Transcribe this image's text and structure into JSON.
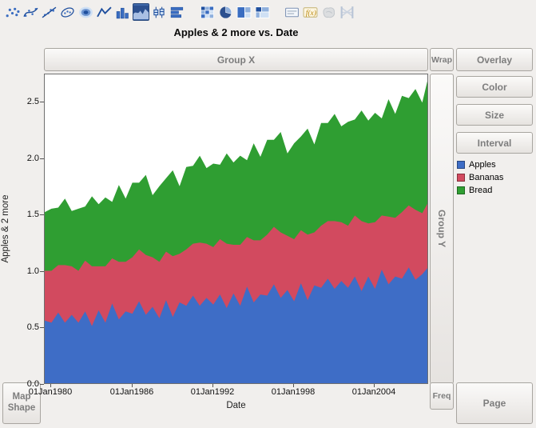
{
  "title": "Apples & 2 more vs. Date",
  "toolbar": {
    "icons": [
      {
        "name": "points",
        "group": 1
      },
      {
        "name": "smoother",
        "group": 1
      },
      {
        "name": "line-of-fit",
        "group": 1
      },
      {
        "name": "ellipse",
        "group": 1
      },
      {
        "name": "contour",
        "group": 1
      },
      {
        "name": "line",
        "group": 1
      },
      {
        "name": "bar",
        "group": 1
      },
      {
        "name": "area",
        "group": 1,
        "selected": true
      },
      {
        "name": "box-plot",
        "group": 1
      },
      {
        "name": "histogram",
        "group": 1
      },
      {
        "name": "heatmap",
        "group": 2
      },
      {
        "name": "pie",
        "group": 2
      },
      {
        "name": "treemap",
        "group": 2
      },
      {
        "name": "mosaic",
        "group": 2
      },
      {
        "name": "caption-box",
        "group": 3
      },
      {
        "name": "formula",
        "group": 3
      },
      {
        "name": "map-shapes",
        "group": 3,
        "disabled": true
      },
      {
        "name": "parallel",
        "group": 3,
        "disabled": true
      }
    ]
  },
  "zones": {
    "group_x": "Group X",
    "wrap": "Wrap",
    "overlay": "Overlay",
    "color": "Color",
    "size": "Size",
    "interval": "Interval",
    "group_y": "Group Y",
    "map_shape_line1": "Map",
    "map_shape_line2": "Shape",
    "freq": "Freq",
    "page": "Page"
  },
  "legend": {
    "items": [
      {
        "label": "Apples",
        "color": "#3e6dc6"
      },
      {
        "label": "Bananas",
        "color": "#d24a5f"
      },
      {
        "label": "Bread",
        "color": "#2f9e32"
      }
    ]
  },
  "axes": {
    "x_label": "Date",
    "y_label": "Apples & 2 more",
    "x_ticks": [
      {
        "label": "01Jan1980",
        "value": 1980
      },
      {
        "label": "01Jan1986",
        "value": 1986
      },
      {
        "label": "01Jan1992",
        "value": 1992
      },
      {
        "label": "01Jan1998",
        "value": 1998
      },
      {
        "label": "01Jan2004",
        "value": 2004
      }
    ],
    "y_ticks": [
      {
        "label": "0.0",
        "value": 0
      },
      {
        "label": "0.5",
        "value": 0.5
      },
      {
        "label": "1.0",
        "value": 1
      },
      {
        "label": "1.5",
        "value": 1.5
      },
      {
        "label": "2.0",
        "value": 2
      },
      {
        "label": "2.5",
        "value": 2.5
      }
    ]
  },
  "chart_data": {
    "type": "area",
    "stacked": true,
    "title": "Apples & 2 more vs. Date",
    "xlabel": "Date",
    "ylabel": "Apples & 2 more",
    "xlim": [
      1979.5,
      2008
    ],
    "ylim": [
      0,
      2.75
    ],
    "grid": false,
    "legend_position": "right",
    "x": [
      1979.5,
      1980,
      1980.5,
      1981,
      1981.5,
      1982,
      1982.5,
      1983,
      1983.5,
      1984,
      1984.5,
      1985,
      1985.5,
      1986,
      1986.5,
      1987,
      1987.5,
      1988,
      1988.5,
      1989,
      1989.5,
      1990,
      1990.5,
      1991,
      1991.5,
      1992,
      1992.5,
      1993,
      1993.5,
      1994,
      1994.5,
      1995,
      1995.5,
      1996,
      1996.5,
      1997,
      1997.5,
      1998,
      1998.5,
      1999,
      1999.5,
      2000,
      2000.5,
      2001,
      2001.5,
      2002,
      2002.5,
      2003,
      2003.5,
      2004,
      2004.5,
      2005,
      2005.5,
      2006,
      2006.5,
      2007,
      2007.5,
      2008
    ],
    "series": [
      {
        "name": "Apples",
        "color": "#3e6dc6",
        "values": [
          0.57,
          0.55,
          0.64,
          0.55,
          0.62,
          0.55,
          0.65,
          0.52,
          0.66,
          0.55,
          0.72,
          0.58,
          0.65,
          0.63,
          0.74,
          0.62,
          0.69,
          0.59,
          0.75,
          0.6,
          0.73,
          0.7,
          0.79,
          0.7,
          0.77,
          0.71,
          0.8,
          0.68,
          0.81,
          0.7,
          0.87,
          0.73,
          0.8,
          0.79,
          0.89,
          0.77,
          0.84,
          0.74,
          0.9,
          0.75,
          0.88,
          0.86,
          0.94,
          0.85,
          0.92,
          0.86,
          0.96,
          0.83,
          0.96,
          0.85,
          1.02,
          0.89,
          0.96,
          0.94,
          1.04,
          0.93,
          0.98,
          1.05
        ]
      },
      {
        "name": "Bananas",
        "color": "#d24a5f",
        "values": [
          0.44,
          0.46,
          0.42,
          0.51,
          0.43,
          0.46,
          0.45,
          0.53,
          0.39,
          0.5,
          0.4,
          0.51,
          0.44,
          0.5,
          0.46,
          0.53,
          0.44,
          0.5,
          0.43,
          0.54,
          0.43,
          0.5,
          0.46,
          0.56,
          0.48,
          0.51,
          0.49,
          0.57,
          0.43,
          0.54,
          0.44,
          0.55,
          0.48,
          0.54,
          0.51,
          0.58,
          0.48,
          0.55,
          0.47,
          0.58,
          0.47,
          0.55,
          0.51,
          0.6,
          0.52,
          0.55,
          0.54,
          0.62,
          0.47,
          0.59,
          0.48,
          0.6,
          0.52,
          0.59,
          0.55,
          0.62,
          0.54,
          0.58
        ]
      },
      {
        "name": "Bread",
        "color": "#2f9e32",
        "values": [
          0.52,
          0.55,
          0.51,
          0.59,
          0.49,
          0.55,
          0.48,
          0.62,
          0.55,
          0.61,
          0.5,
          0.68,
          0.56,
          0.66,
          0.59,
          0.71,
          0.55,
          0.67,
          0.65,
          0.76,
          0.6,
          0.73,
          0.69,
          0.77,
          0.67,
          0.74,
          0.66,
          0.8,
          0.73,
          0.79,
          0.68,
          0.86,
          0.74,
          0.84,
          0.77,
          0.89,
          0.73,
          0.85,
          0.83,
          0.94,
          0.78,
          0.91,
          0.87,
          0.95,
          0.85,
          0.92,
          0.85,
          0.98,
          0.91,
          0.97,
          0.86,
          1.04,
          0.92,
          1.03,
          0.95,
          1.07,
          0.98,
          1.12
        ]
      }
    ]
  }
}
